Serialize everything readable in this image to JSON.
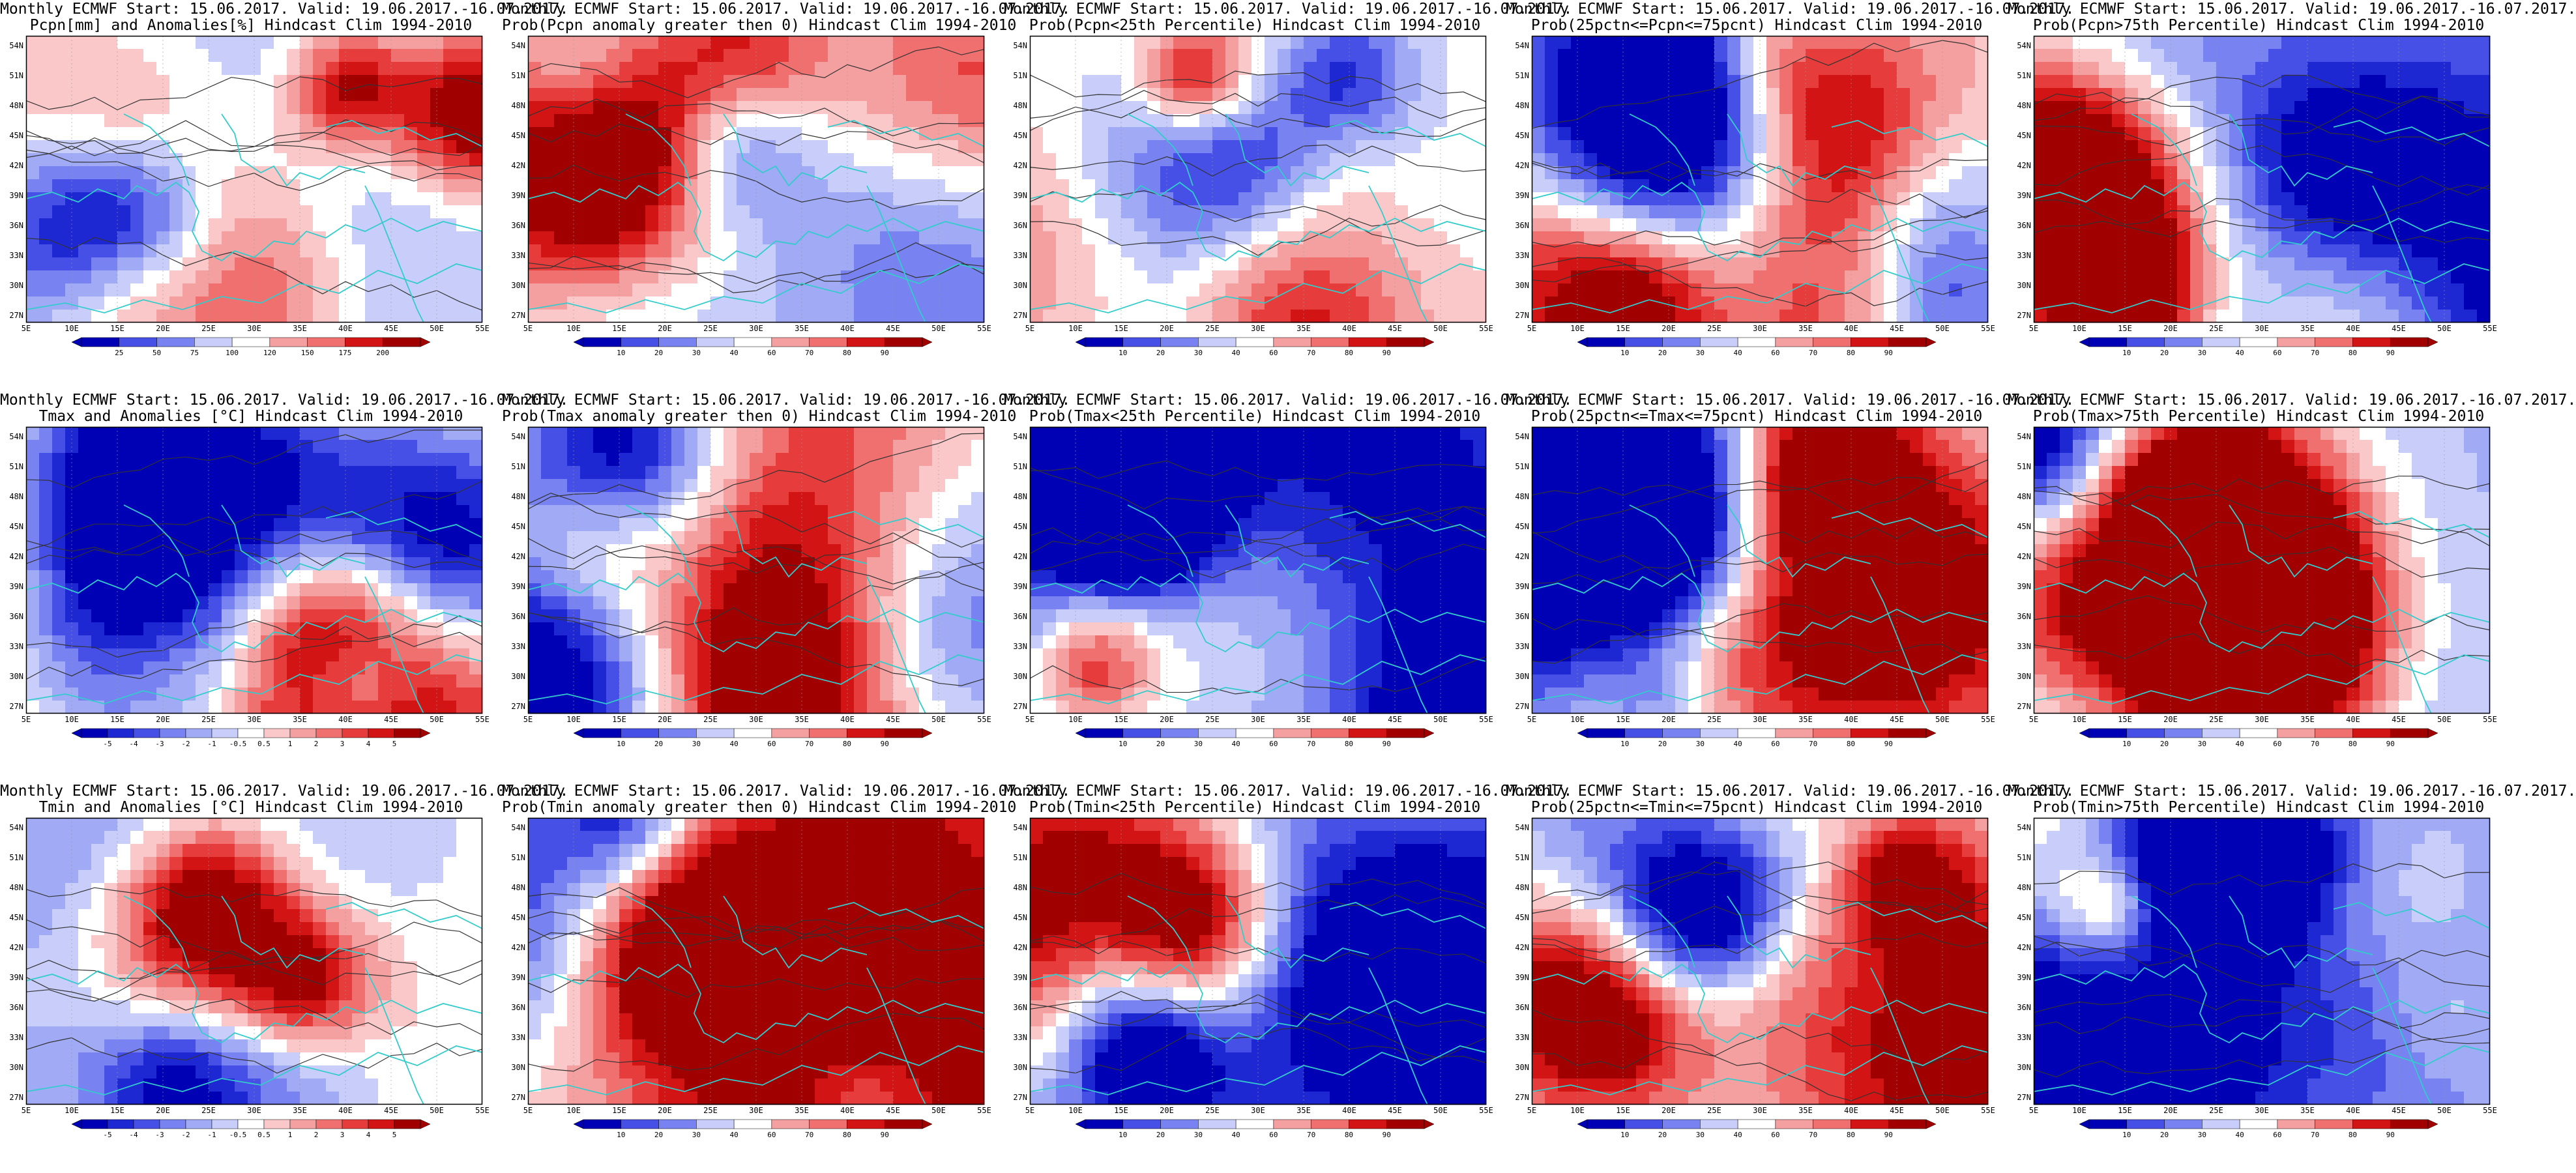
{
  "panels": [
    {
      "title1": "Monthly ECMWF Start: 15.06.2017. Valid: 19.06.2017.-16.07.2017.",
      "title2": "Pcpn[mm] and Anomalies[%] Hindcast Clim 1994-2010",
      "colorbar": "anomaly_pct",
      "colorbar_labels": [
        "25",
        "50",
        "75",
        "100",
        "120",
        "150",
        "175",
        "200"
      ]
    },
    {
      "title1": "Monthly ECMWF Start: 15.06.2017. Valid: 19.06.2017.-16.07.2017.",
      "title2": "Prob(Pcpn anomaly greater then 0) Hindcast Clim 1994-2010",
      "colorbar": "prob",
      "colorbar_labels": [
        "10",
        "20",
        "30",
        "40",
        "60",
        "70",
        "80",
        "90"
      ]
    },
    {
      "title1": "Monthly ECMWF Start: 15.06.2017. Valid: 19.06.2017.-16.07.2017.",
      "title2": "Prob(Pcpn<25th Percentile) Hindcast Clim 1994-2010",
      "colorbar": "prob",
      "colorbar_labels": [
        "10",
        "20",
        "30",
        "40",
        "60",
        "70",
        "80",
        "90"
      ]
    },
    {
      "title1": "Monthly ECMWF Start: 15.06.2017. Valid: 19.06.2017.-16.07.2017.",
      "title2": "Prob(25pctn<=Pcpn<=75pcnt) Hindcast Clim 1994-2010",
      "colorbar": "prob",
      "colorbar_labels": [
        "10",
        "20",
        "30",
        "40",
        "60",
        "70",
        "80",
        "90"
      ]
    },
    {
      "title1": "Monthly ECMWF Start: 15.06.2017. Valid: 19.06.2017.-16.07.2017.",
      "title2": "Prob(Pcpn>75th Percentile) Hindcast Clim 1994-2010",
      "colorbar": "prob",
      "colorbar_labels": [
        "10",
        "20",
        "30",
        "40",
        "60",
        "70",
        "80",
        "90"
      ]
    },
    {
      "title1": "Monthly ECMWF Start: 15.06.2017. Valid: 19.06.2017.-16.07.2017.",
      "title2": "Tmax and Anomalies [°C] Hindcast Clim 1994-2010",
      "colorbar": "anomaly_c",
      "colorbar_labels": [
        "-5",
        "-4",
        "-3",
        "-2",
        "-1",
        "-0.5",
        "0.5",
        "1",
        "2",
        "3",
        "4",
        "5"
      ]
    },
    {
      "title1": "Monthly ECMWF Start: 15.06.2017. Valid: 19.06.2017.-16.07.2017.",
      "title2": "Prob(Tmax anomaly greater then 0) Hindcast Clim 1994-2010",
      "colorbar": "prob",
      "colorbar_labels": [
        "10",
        "20",
        "30",
        "40",
        "60",
        "70",
        "80",
        "90"
      ]
    },
    {
      "title1": "Monthly ECMWF Start: 15.06.2017. Valid: 19.06.2017.-16.07.2017.",
      "title2": "Prob(Tmax<25th Percentile) Hindcast Clim 1994-2010",
      "colorbar": "prob",
      "colorbar_labels": [
        "10",
        "20",
        "30",
        "40",
        "60",
        "70",
        "80",
        "90"
      ]
    },
    {
      "title1": "Monthly ECMWF Start: 15.06.2017. Valid: 19.06.2017.-16.07.2017.",
      "title2": "Prob(25pctn<=Tmax<=75pcnt) Hindcast Clim 1994-2010",
      "colorbar": "prob",
      "colorbar_labels": [
        "10",
        "20",
        "30",
        "40",
        "60",
        "70",
        "80",
        "90"
      ]
    },
    {
      "title1": "Monthly ECMWF Start: 15.06.2017. Valid: 19.06.2017.-16.07.2017.",
      "title2": "Prob(Tmax>75th Percentile) Hindcast Clim 1994-2010",
      "colorbar": "prob",
      "colorbar_labels": [
        "10",
        "20",
        "30",
        "40",
        "60",
        "70",
        "80",
        "90"
      ]
    },
    {
      "title1": "Monthly ECMWF Start: 15.06.2017. Valid: 19.06.2017.-16.07.2017.",
      "title2": "Tmin and Anomalies [°C] Hindcast Clim 1994-2010",
      "colorbar": "anomaly_c",
      "colorbar_labels": [
        "-5",
        "-4",
        "-3",
        "-2",
        "-1",
        "-0.5",
        "0.5",
        "1",
        "2",
        "3",
        "4",
        "5"
      ]
    },
    {
      "title1": "Monthly ECMWF Start: 15.06.2017. Valid: 19.06.2017.-16.07.2017.",
      "title2": "Prob(Tmin anomaly greater then 0) Hindcast Clim 1994-2010",
      "colorbar": "prob",
      "colorbar_labels": [
        "10",
        "20",
        "30",
        "40",
        "60",
        "70",
        "80",
        "90"
      ]
    },
    {
      "title1": "Monthly ECMWF Start: 15.06.2017. Valid: 19.06.2017.-16.07.2017.",
      "title2": "Prob(Tmin<25th Percentile) Hindcast Clim 1994-2010",
      "colorbar": "prob",
      "colorbar_labels": [
        "10",
        "20",
        "30",
        "40",
        "60",
        "70",
        "80",
        "90"
      ]
    },
    {
      "title1": "Monthly ECMWF Start: 15.06.2017. Valid: 19.06.2017.-16.07.2017.",
      "title2": "Prob(25pctn<=Tmin<=75pcnt) Hindcast Clim 1994-2010",
      "colorbar": "prob",
      "colorbar_labels": [
        "10",
        "20",
        "30",
        "40",
        "60",
        "70",
        "80",
        "90"
      ]
    },
    {
      "title1": "Monthly ECMWF Start: 15.06.2017. Valid: 19.06.2017.-16.07.2017.",
      "title2": "Prob(Tmin>75th Percentile) Hindcast Clim 1994-2010",
      "colorbar": "prob",
      "colorbar_labels": [
        "10",
        "20",
        "30",
        "40",
        "60",
        "70",
        "80",
        "90"
      ]
    }
  ],
  "map_axes": {
    "lat_labels": [
      "54N",
      "51N",
      "48N",
      "45N",
      "42N",
      "39N",
      "36N",
      "33N",
      "30N",
      "27N"
    ],
    "lon_labels": [
      "5E",
      "10E",
      "15E",
      "20E",
      "25E",
      "30E",
      "35E",
      "40E",
      "45E",
      "50E",
      "55E"
    ]
  },
  "palettes": {
    "blue_red": [
      "#0000b4",
      "#1e28d2",
      "#4650e6",
      "#7882f0",
      "#a0aaf5",
      "#c8cdfa",
      "#ffffff",
      "#fac8c8",
      "#f5a0a0",
      "#f07070",
      "#e63c3c",
      "#d21414",
      "#a00000"
    ],
    "coast_color": "#33cccc",
    "contour_color": "#333333"
  }
}
